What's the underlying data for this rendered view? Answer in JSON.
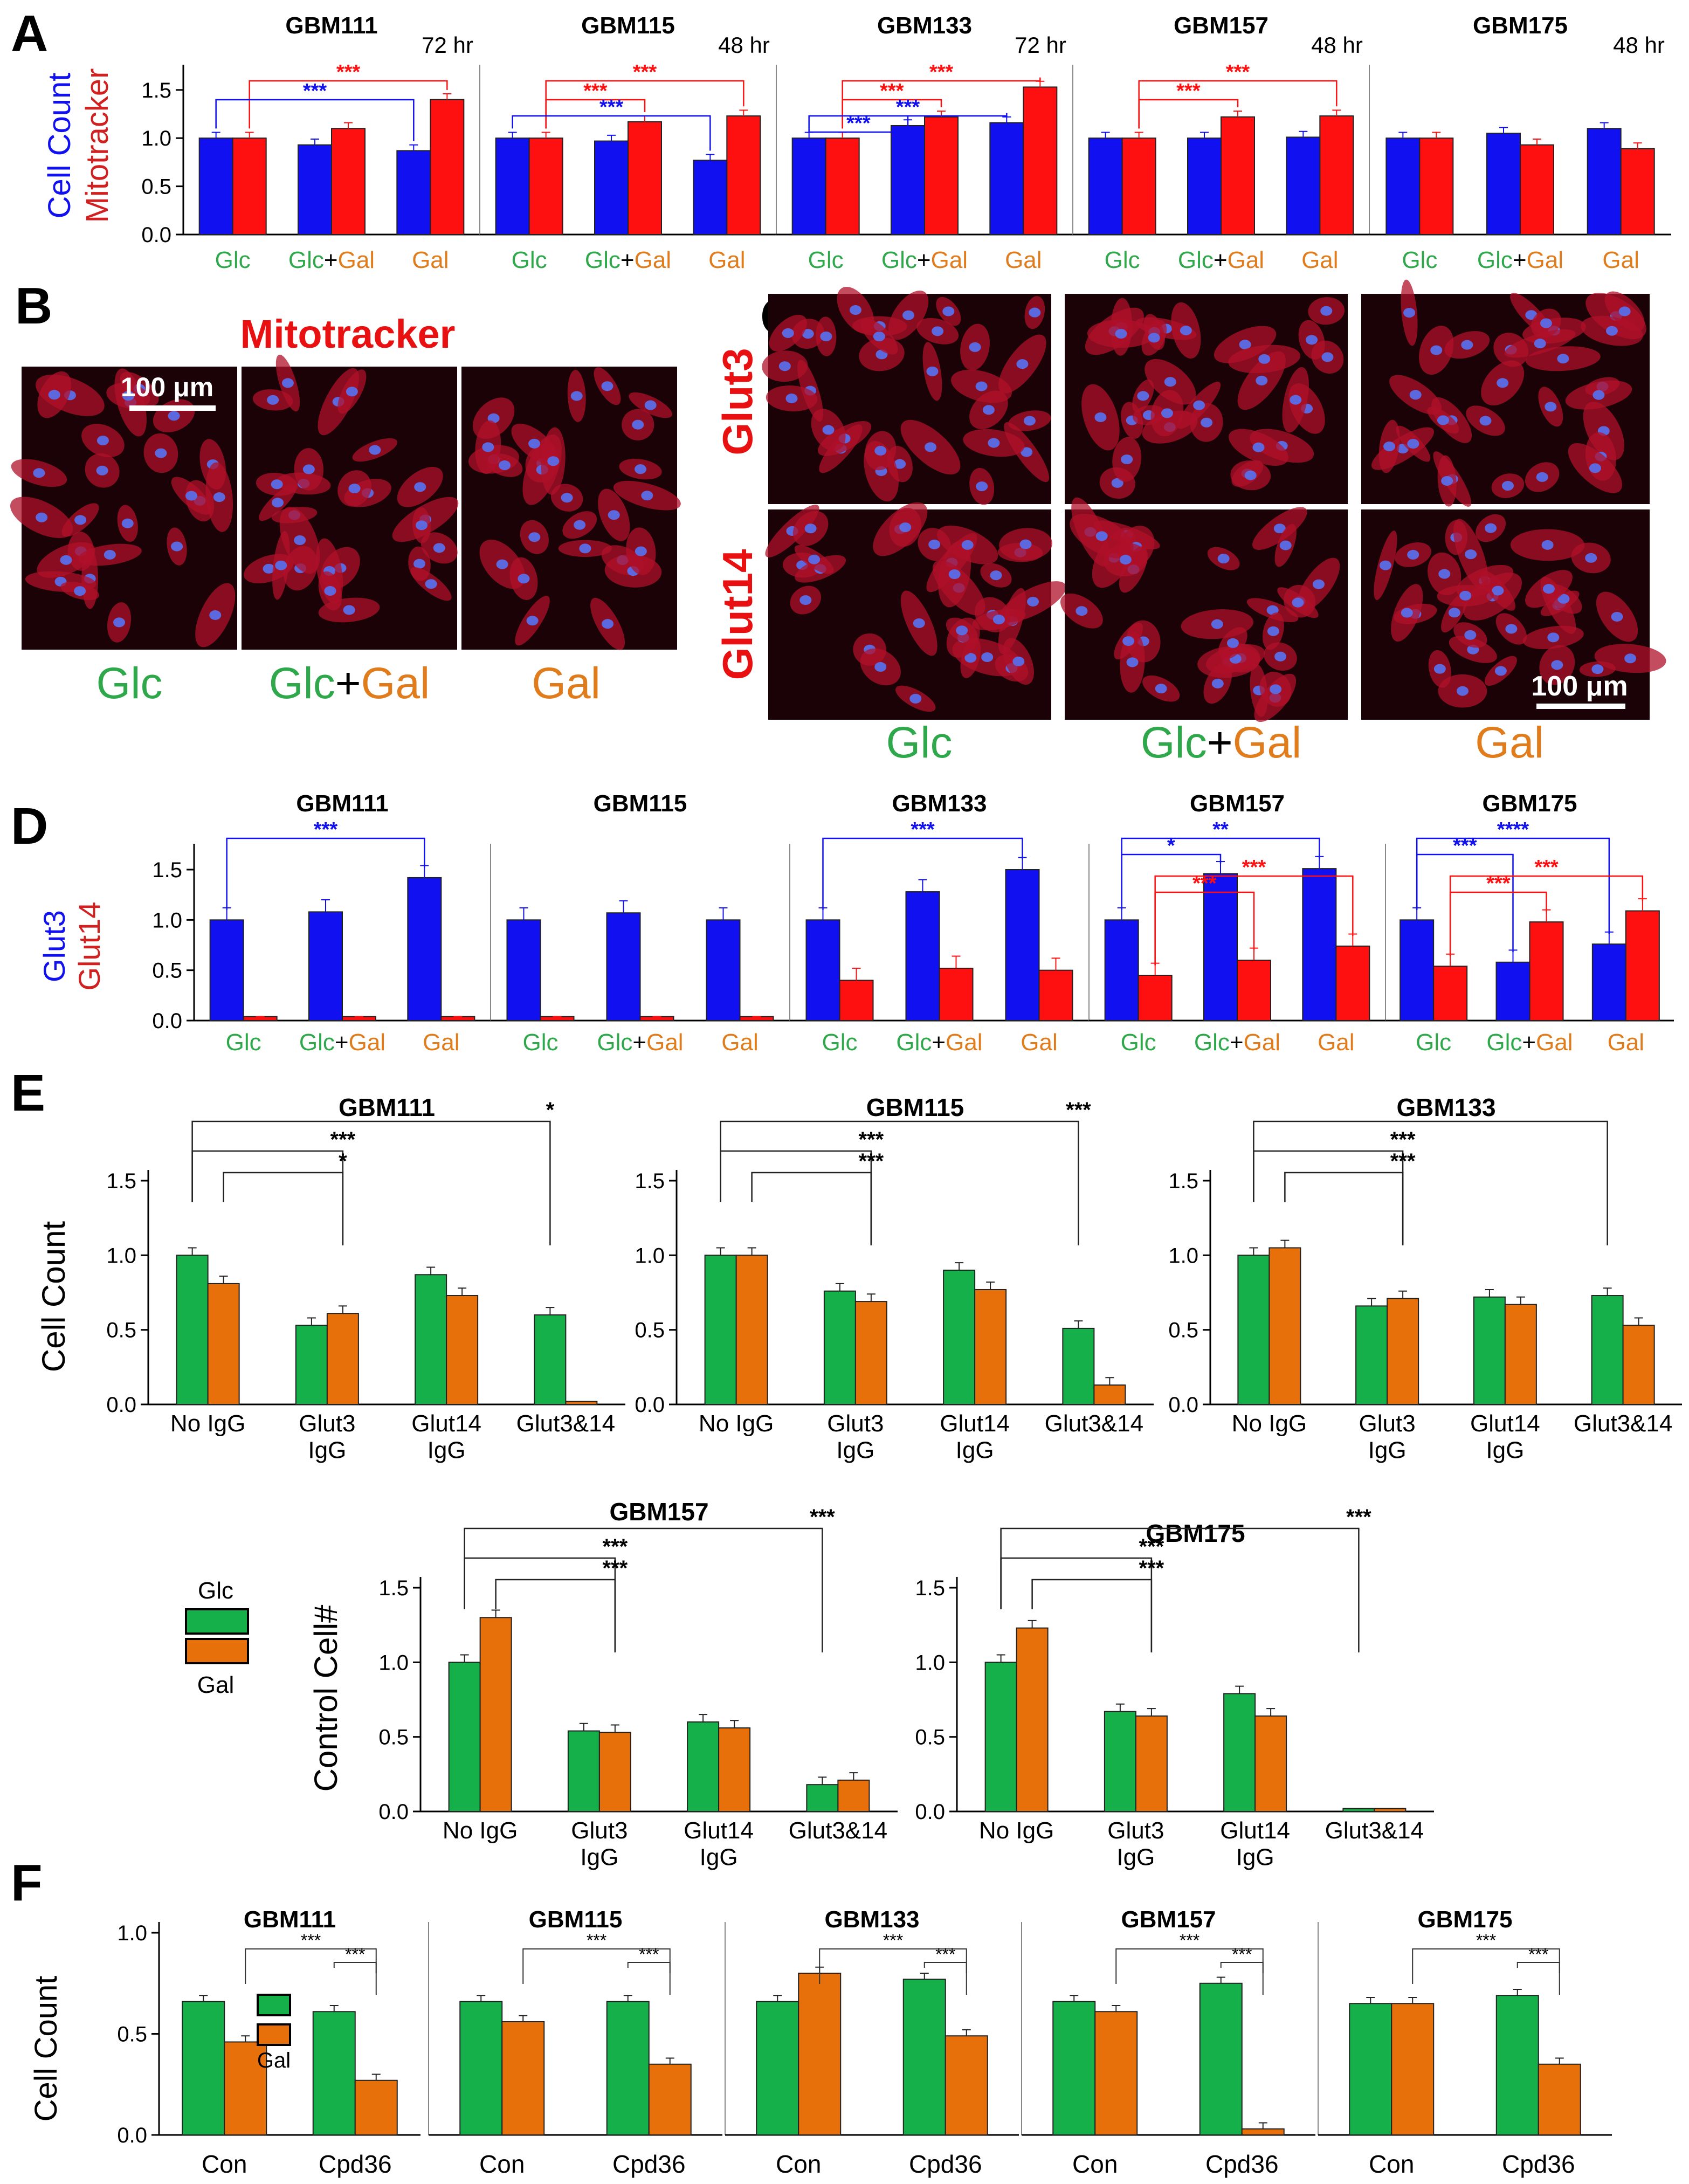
{
  "colors": {
    "blue": "#1010f0",
    "red": "#ff1010",
    "green": "#15b04a",
    "orange": "#e8700a",
    "glc_text": "#2ea84a",
    "gal_text": "#e07c1c",
    "dark_red": "#ff2020"
  },
  "panel_letters": [
    "A",
    "B",
    "C",
    "D",
    "E",
    "F"
  ],
  "panel_A": {
    "ylabel_1": "Cell Count",
    "ylabel_2": "Mitotracker",
    "categories": [
      "Glc",
      "Glc+Gal",
      "Gal"
    ],
    "yticks": [
      "0.0",
      "0.5",
      "1.0",
      "1.5"
    ],
    "charts": [
      {
        "title": "GBM111",
        "time": "72 hr",
        "cell_count": [
          1.0,
          0.93,
          0.87
        ],
        "mitotracker": [
          1.0,
          1.1,
          1.4
        ],
        "sig": [
          {
            "from": 0,
            "to": 2,
            "series": "red",
            "label": "***"
          },
          {
            "from": 0,
            "to": 2,
            "series": "blue",
            "label": "***"
          }
        ]
      },
      {
        "title": "GBM115",
        "time": "48 hr",
        "cell_count": [
          1.0,
          0.97,
          0.77
        ],
        "mitotracker": [
          1.0,
          1.17,
          1.23
        ],
        "sig": [
          {
            "from": 0,
            "to": 2,
            "series": "red",
            "label": "***"
          },
          {
            "from": 0,
            "to": 1,
            "series": "red",
            "label": "***"
          },
          {
            "from": 0,
            "to": 2,
            "series": "blue",
            "label": "***"
          }
        ]
      },
      {
        "title": "GBM133",
        "time": "72 hr",
        "cell_count": [
          1.0,
          1.13,
          1.16
        ],
        "mitotracker": [
          1.0,
          1.22,
          1.53
        ],
        "sig": [
          {
            "from": 0,
            "to": 2,
            "series": "red",
            "label": "***"
          },
          {
            "from": 0,
            "to": 1,
            "series": "red",
            "label": "***"
          },
          {
            "from": 0,
            "to": 2,
            "series": "blue",
            "label": "***"
          },
          {
            "from": 0,
            "to": 1,
            "series": "blue",
            "label": "***"
          }
        ]
      },
      {
        "title": "GBM157",
        "time": "48 hr",
        "cell_count": [
          1.0,
          1.0,
          1.01
        ],
        "mitotracker": [
          1.0,
          1.22,
          1.23
        ],
        "sig": [
          {
            "from": 0,
            "to": 2,
            "series": "red",
            "label": "***"
          },
          {
            "from": 0,
            "to": 1,
            "series": "red",
            "label": "***"
          }
        ]
      },
      {
        "title": "GBM175",
        "time": "48 hr",
        "cell_count": [
          1.0,
          1.05,
          1.1
        ],
        "mitotracker": [
          1.0,
          0.93,
          0.89
        ],
        "sig": []
      }
    ]
  },
  "panel_B": {
    "title": "Mitotracker",
    "scale_bar": "100 μm",
    "labels": [
      {
        "glc": "Glc",
        "plus": "",
        "gal": ""
      },
      {
        "glc": "Glc",
        "plus": "+",
        "gal": "Gal"
      },
      {
        "glc": "",
        "plus": "",
        "gal": "Gal"
      }
    ]
  },
  "panel_C": {
    "row_labels": [
      "Glut3",
      "Glut14"
    ],
    "scale_bar": "100 μm",
    "labels": [
      {
        "glc": "Glc",
        "plus": "",
        "gal": ""
      },
      {
        "glc": "Glc",
        "plus": "+",
        "gal": "Gal"
      },
      {
        "glc": "",
        "plus": "",
        "gal": "Gal"
      }
    ]
  },
  "panel_D": {
    "ylabel_1": "Glut3",
    "ylabel_2": "Glut14",
    "categories": [
      "Glc",
      "Glc+Gal",
      "Gal"
    ],
    "yticks": [
      "0.0",
      "0.5",
      "1.0",
      "1.5"
    ],
    "charts": [
      {
        "title": "GBM111",
        "glut3": [
          1.0,
          1.08,
          1.42
        ],
        "glut14": [
          0.04,
          0.04,
          0.04
        ],
        "sig": [
          {
            "from": 0,
            "to": 2,
            "series": "blue",
            "label": "***"
          }
        ]
      },
      {
        "title": "GBM115",
        "glut3": [
          1.0,
          1.07,
          1.0
        ],
        "glut14": [
          0.04,
          0.04,
          0.04
        ],
        "sig": []
      },
      {
        "title": "GBM133",
        "glut3": [
          1.0,
          1.28,
          1.5
        ],
        "glut14": [
          0.4,
          0.52,
          0.5
        ],
        "sig": [
          {
            "from": 0,
            "to": 2,
            "series": "blue",
            "label": "***"
          }
        ]
      },
      {
        "title": "GBM157",
        "glut3": [
          1.0,
          1.46,
          1.51
        ],
        "glut14": [
          0.45,
          0.6,
          0.74
        ],
        "sig": [
          {
            "from": 0,
            "to": 2,
            "series": "blue",
            "label": "**"
          },
          {
            "from": 0,
            "to": 1,
            "series": "blue",
            "label": "*"
          },
          {
            "from": 0,
            "to": 2,
            "series": "red",
            "label": "***"
          },
          {
            "from": 0,
            "to": 1,
            "series": "red",
            "label": "***"
          }
        ]
      },
      {
        "title": "GBM175",
        "glut3": [
          1.0,
          0.58,
          0.76
        ],
        "glut14": [
          0.54,
          0.98,
          1.09
        ],
        "sig": [
          {
            "from": 0,
            "to": 2,
            "series": "blue",
            "label": "****"
          },
          {
            "from": 0,
            "to": 1,
            "series": "blue",
            "label": "***"
          },
          {
            "from": 0,
            "to": 2,
            "series": "red",
            "label": "***"
          },
          {
            "from": 0,
            "to": 1,
            "series": "red",
            "label": "***"
          }
        ]
      }
    ]
  },
  "panel_E": {
    "ylabel_top": "Cell Count",
    "ylabel_bottom": "Control Cell#",
    "categories": [
      "No IgG",
      "Glut3\nIgG",
      "Glut14\nIgG",
      "Glut3&14"
    ],
    "yticks": [
      "0.0",
      "0.5",
      "1.0",
      "1.5"
    ],
    "legend": {
      "glc": "Glc",
      "gal": "Gal"
    },
    "charts": [
      {
        "title": "GBM111",
        "glc": [
          1.0,
          0.53,
          0.87,
          0.6
        ],
        "gal": [
          0.81,
          0.61,
          0.73,
          0.02
        ]
      },
      {
        "title": "GBM115",
        "glc": [
          1.0,
          0.76,
          0.9,
          0.51
        ],
        "gal": [
          1.0,
          0.69,
          0.77,
          0.13
        ]
      },
      {
        "title": "GBM133",
        "glc": [
          1.0,
          0.66,
          0.72,
          0.73
        ],
        "gal": [
          1.05,
          0.71,
          0.67,
          0.53
        ]
      },
      {
        "title": "GBM157",
        "glc": [
          1.0,
          0.54,
          0.6,
          0.18
        ],
        "gal": [
          1.3,
          0.53,
          0.56,
          0.21
        ]
      },
      {
        "title": "GBM175",
        "glc": [
          1.0,
          0.67,
          0.79,
          0.02
        ],
        "gal": [
          1.23,
          0.64,
          0.64,
          0.02
        ]
      }
    ]
  },
  "panel_F": {
    "ylabel": "Cell Count",
    "categories": [
      "Con",
      "Cpd36"
    ],
    "yticks": [
      "0.0",
      "0.5",
      "1.0"
    ],
    "legend": {
      "gal": "Gal"
    },
    "charts": [
      {
        "title": "GBM111",
        "glc": [
          0.66,
          0.61
        ],
        "gal": [
          0.46,
          0.27
        ]
      },
      {
        "title": "GBM115",
        "glc": [
          0.66,
          0.66
        ],
        "gal": [
          0.56,
          0.35
        ]
      },
      {
        "title": "GBM133",
        "glc": [
          0.66,
          0.77
        ],
        "gal": [
          0.8,
          0.49
        ]
      },
      {
        "title": "GBM157",
        "glc": [
          0.66,
          0.75
        ],
        "gal": [
          0.61,
          0.03
        ]
      },
      {
        "title": "GBM175",
        "glc": [
          0.65,
          0.69
        ],
        "gal": [
          0.65,
          0.35
        ]
      }
    ]
  },
  "chart_data": [
    {
      "type": "bar",
      "title": "GBM111",
      "categories": [
        "Glc",
        "Glc+Gal",
        "Gal"
      ],
      "ylim": [
        0,
        1.5
      ],
      "ylabel": "Cell Count / Mitotracker",
      "series": [
        {
          "name": "Cell Count",
          "values": [
            1.0,
            0.93,
            0.87
          ]
        },
        {
          "name": "Mitotracker",
          "values": [
            1.0,
            1.1,
            1.4
          ]
        }
      ]
    },
    {
      "type": "bar",
      "title": "GBM115",
      "categories": [
        "Glc",
        "Glc+Gal",
        "Gal"
      ],
      "ylim": [
        0,
        1.5
      ],
      "series": [
        {
          "name": "Cell Count",
          "values": [
            1.0,
            0.97,
            0.77
          ]
        },
        {
          "name": "Mitotracker",
          "values": [
            1.0,
            1.17,
            1.23
          ]
        }
      ]
    },
    {
      "type": "bar",
      "title": "GBM133",
      "categories": [
        "Glc",
        "Glc+Gal",
        "Gal"
      ],
      "ylim": [
        0,
        1.5
      ],
      "series": [
        {
          "name": "Cell Count",
          "values": [
            1.0,
            1.13,
            1.16
          ]
        },
        {
          "name": "Mitotracker",
          "values": [
            1.0,
            1.22,
            1.53
          ]
        }
      ]
    },
    {
      "type": "bar",
      "title": "GBM157",
      "categories": [
        "Glc",
        "Glc+Gal",
        "Gal"
      ],
      "ylim": [
        0,
        1.5
      ],
      "series": [
        {
          "name": "Cell Count",
          "values": [
            1.0,
            1.0,
            1.01
          ]
        },
        {
          "name": "Mitotracker",
          "values": [
            1.0,
            1.22,
            1.23
          ]
        }
      ]
    },
    {
      "type": "bar",
      "title": "GBM175",
      "categories": [
        "Glc",
        "Glc+Gal",
        "Gal"
      ],
      "ylim": [
        0,
        1.5
      ],
      "series": [
        {
          "name": "Cell Count",
          "values": [
            1.0,
            1.05,
            1.1
          ]
        },
        {
          "name": "Mitotracker",
          "values": [
            1.0,
            0.93,
            0.89
          ]
        }
      ]
    },
    {
      "type": "bar",
      "title": "GBM111",
      "categories": [
        "Glc",
        "Glc+Gal",
        "Gal"
      ],
      "ylim": [
        0,
        1.5
      ],
      "ylabel": "Glut3 / Glut14",
      "series": [
        {
          "name": "Glut3",
          "values": [
            1.0,
            1.08,
            1.42
          ]
        },
        {
          "name": "Glut14",
          "values": [
            0.04,
            0.04,
            0.04
          ]
        }
      ]
    },
    {
      "type": "bar",
      "title": "GBM115",
      "categories": [
        "Glc",
        "Glc+Gal",
        "Gal"
      ],
      "ylim": [
        0,
        1.5
      ],
      "series": [
        {
          "name": "Glut3",
          "values": [
            1.0,
            1.07,
            1.0
          ]
        },
        {
          "name": "Glut14",
          "values": [
            0.04,
            0.04,
            0.04
          ]
        }
      ]
    },
    {
      "type": "bar",
      "title": "GBM133",
      "categories": [
        "Glc",
        "Glc+Gal",
        "Gal"
      ],
      "ylim": [
        0,
        1.5
      ],
      "series": [
        {
          "name": "Glut3",
          "values": [
            1.0,
            1.28,
            1.5
          ]
        },
        {
          "name": "Glut14",
          "values": [
            0.4,
            0.52,
            0.5
          ]
        }
      ]
    },
    {
      "type": "bar",
      "title": "GBM157",
      "categories": [
        "Glc",
        "Glc+Gal",
        "Gal"
      ],
      "ylim": [
        0,
        1.5
      ],
      "series": [
        {
          "name": "Glut3",
          "values": [
            1.0,
            1.46,
            1.51
          ]
        },
        {
          "name": "Glut14",
          "values": [
            0.45,
            0.6,
            0.74
          ]
        }
      ]
    },
    {
      "type": "bar",
      "title": "GBM175",
      "categories": [
        "Glc",
        "Glc+Gal",
        "Gal"
      ],
      "ylim": [
        0,
        1.5
      ],
      "series": [
        {
          "name": "Glut3",
          "values": [
            1.0,
            0.58,
            0.76
          ]
        },
        {
          "name": "Glut14",
          "values": [
            0.54,
            0.98,
            1.09
          ]
        }
      ]
    },
    {
      "type": "bar",
      "title": "GBM111",
      "categories": [
        "No IgG",
        "Glut3 IgG",
        "Glut14 IgG",
        "Glut3&14"
      ],
      "ylim": [
        0,
        1.5
      ],
      "ylabel": "Cell Count",
      "series": [
        {
          "name": "Glc",
          "values": [
            1.0,
            0.53,
            0.87,
            0.6
          ]
        },
        {
          "name": "Gal",
          "values": [
            0.81,
            0.61,
            0.73,
            0.02
          ]
        }
      ]
    },
    {
      "type": "bar",
      "title": "GBM115",
      "categories": [
        "No IgG",
        "Glut3 IgG",
        "Glut14 IgG",
        "Glut3&14"
      ],
      "ylim": [
        0,
        1.5
      ],
      "series": [
        {
          "name": "Glc",
          "values": [
            1.0,
            0.76,
            0.9,
            0.51
          ]
        },
        {
          "name": "Gal",
          "values": [
            1.0,
            0.69,
            0.77,
            0.13
          ]
        }
      ]
    },
    {
      "type": "bar",
      "title": "GBM133",
      "categories": [
        "No IgG",
        "Glut3 IgG",
        "Glut14 IgG",
        "Glut3&14"
      ],
      "ylim": [
        0,
        1.5
      ],
      "series": [
        {
          "name": "Glc",
          "values": [
            1.0,
            0.66,
            0.72,
            0.73
          ]
        },
        {
          "name": "Gal",
          "values": [
            1.05,
            0.71,
            0.67,
            0.53
          ]
        }
      ]
    },
    {
      "type": "bar",
      "title": "GBM157",
      "categories": [
        "No IgG",
        "Glut3 IgG",
        "Glut14 IgG",
        "Glut3&14"
      ],
      "ylim": [
        0,
        1.5
      ],
      "ylabel": "Control Cell#",
      "series": [
        {
          "name": "Glc",
          "values": [
            1.0,
            0.54,
            0.6,
            0.18
          ]
        },
        {
          "name": "Gal",
          "values": [
            1.3,
            0.53,
            0.56,
            0.21
          ]
        }
      ]
    },
    {
      "type": "bar",
      "title": "GBM175",
      "categories": [
        "No IgG",
        "Glut3 IgG",
        "Glut14 IgG",
        "Glut3&14"
      ],
      "ylim": [
        0,
        1.5
      ],
      "series": [
        {
          "name": "Glc",
          "values": [
            1.0,
            0.67,
            0.79,
            0.02
          ]
        },
        {
          "name": "Gal",
          "values": [
            1.23,
            0.64,
            0.64,
            0.02
          ]
        }
      ]
    },
    {
      "type": "bar",
      "title": "GBM111",
      "categories": [
        "Con",
        "Cpd36"
      ],
      "ylim": [
        0,
        1.0
      ],
      "ylabel": "Cell Count",
      "series": [
        {
          "name": "Glc",
          "values": [
            0.66,
            0.61
          ]
        },
        {
          "name": "Gal",
          "values": [
            0.46,
            0.27
          ]
        }
      ]
    },
    {
      "type": "bar",
      "title": "GBM115",
      "categories": [
        "Con",
        "Cpd36"
      ],
      "ylim": [
        0,
        1.0
      ],
      "series": [
        {
          "name": "Glc",
          "values": [
            0.66,
            0.66
          ]
        },
        {
          "name": "Gal",
          "values": [
            0.56,
            0.35
          ]
        }
      ]
    },
    {
      "type": "bar",
      "title": "GBM133",
      "categories": [
        "Con",
        "Cpd36"
      ],
      "ylim": [
        0,
        1.0
      ],
      "series": [
        {
          "name": "Glc",
          "values": [
            0.66,
            0.77
          ]
        },
        {
          "name": "Gal",
          "values": [
            0.8,
            0.49
          ]
        }
      ]
    },
    {
      "type": "bar",
      "title": "GBM157",
      "categories": [
        "Con",
        "Cpd36"
      ],
      "ylim": [
        0,
        1.0
      ],
      "series": [
        {
          "name": "Glc",
          "values": [
            0.66,
            0.75
          ]
        },
        {
          "name": "Gal",
          "values": [
            0.61,
            0.03
          ]
        }
      ]
    },
    {
      "type": "bar",
      "title": "GBM175",
      "categories": [
        "Con",
        "Cpd36"
      ],
      "ylim": [
        0,
        1.0
      ],
      "series": [
        {
          "name": "Glc",
          "values": [
            0.65,
            0.69
          ]
        },
        {
          "name": "Gal",
          "values": [
            0.65,
            0.35
          ]
        }
      ]
    }
  ]
}
